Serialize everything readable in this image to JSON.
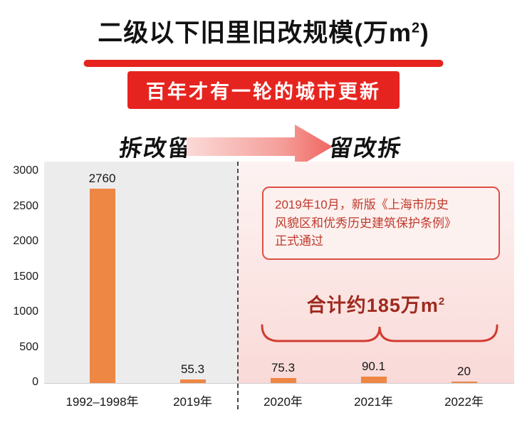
{
  "title": {
    "prefix": "二级以下旧里旧改规模(万m",
    "sup": "2",
    "suffix": ")"
  },
  "banner": {
    "text": "百年才有一轮的城市更新"
  },
  "phases": {
    "left": "拆改留",
    "right": "留改拆"
  },
  "annotation": {
    "lines": [
      "2019年10月，新版《上海市历史",
      "风貌区和优秀历史建筑保护条例》",
      "正式通过"
    ]
  },
  "total": {
    "prefix": "合计约185万m",
    "sup": "2"
  },
  "colors": {
    "accent_red": "#e6241f",
    "bar_orange": "#ee8644",
    "panel_gray": "#ececec",
    "panel_pink_top": "#fdf3f2",
    "panel_pink_bottom": "#f9dad8",
    "annotation_border": "#dd5045",
    "annotation_bg": "#fdf1ef",
    "annotation_text": "#bf3a2d",
    "total_text": "#9e2a1e",
    "brace_red": "#d23c30",
    "arrow_tail": "#fbdad8",
    "arrow_head": "#ef6661",
    "axis_text": "#1a1a1a",
    "divider_gray": "#4a4a4a"
  },
  "chart_data": {
    "type": "bar",
    "categories": [
      "1992–1998年",
      "2019年",
      "2020年",
      "2021年",
      "2022年"
    ],
    "values": [
      2760,
      55.3,
      75.3,
      90.1,
      20
    ],
    "value_labels": [
      "2760",
      "55.3",
      "75.3",
      "90.1",
      "20"
    ],
    "title": "二级以下旧里旧改规模(万m²)",
    "xlabel": "",
    "ylabel": "",
    "ylim": [
      0,
      3000
    ],
    "yticks": [
      0,
      500,
      1000,
      1500,
      2000,
      2500,
      3000
    ],
    "grid": false,
    "legend_position": "none",
    "groups": {
      "left_label": "拆改留",
      "right_label": "留改拆",
      "divider_after_index": 1,
      "right_group_total_label": "合计约185万m²"
    }
  }
}
